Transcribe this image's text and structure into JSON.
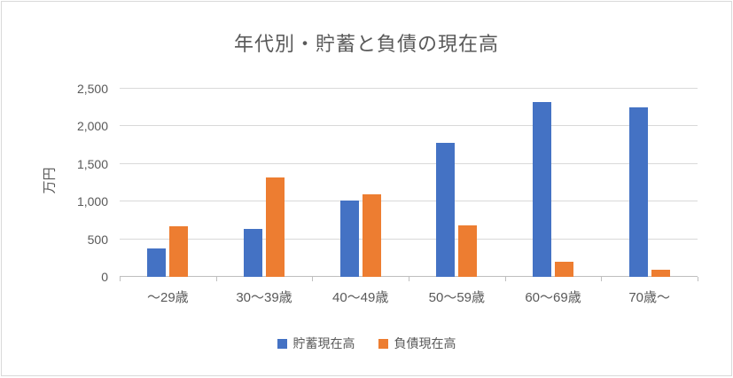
{
  "chart_data": {
    "type": "bar",
    "title": "年代別・貯蓄と負債の現在高",
    "xlabel": "",
    "ylabel": "万円",
    "ylim": [
      0,
      2500
    ],
    "ytick_step": 500,
    "ytick_labels": [
      "0",
      "500",
      "1,000",
      "1,500",
      "2,000",
      "2,500"
    ],
    "grid": true,
    "legend_position": "bottom",
    "categories": [
      "～29歳",
      "30～39歳",
      "40～49歳",
      "50～59歳",
      "60～69歳",
      "70歳～"
    ],
    "series": [
      {
        "name": "貯蓄現在高",
        "color": "#4472C4",
        "values": [
          380,
          640,
          1010,
          1780,
          2320,
          2250
        ]
      },
      {
        "name": "負債現在高",
        "color": "#ED7D31",
        "values": [
          670,
          1320,
          1100,
          690,
          200,
          100
        ]
      }
    ]
  },
  "colors": {
    "title_text": "#595959",
    "axis_text": "#595959",
    "gridline": "#D9D9D9",
    "axis_line": "#BFBFBF",
    "frame_border": "#D9D9D9",
    "series_blue": "#4472C4",
    "series_orange": "#ED7D31"
  }
}
